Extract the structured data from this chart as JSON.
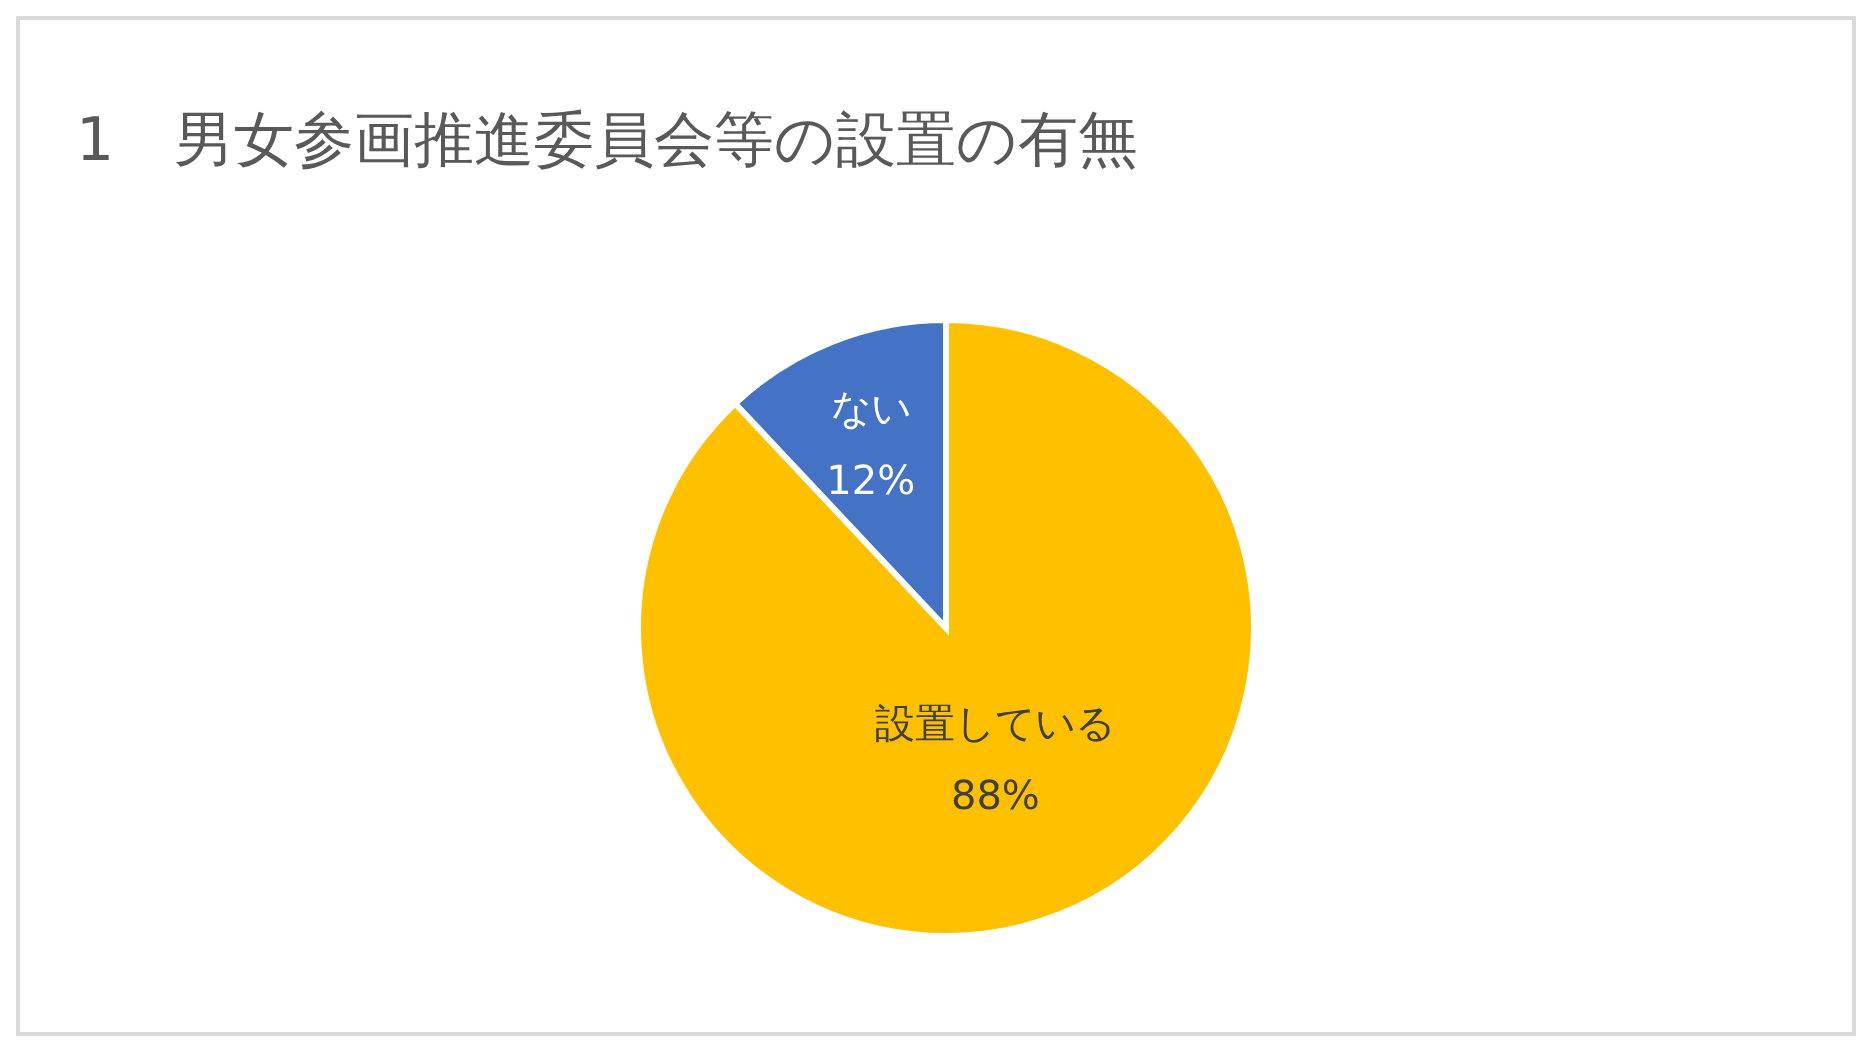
{
  "chart_data": {
    "type": "pie",
    "title": "1　男女参画推進委員会等の設置の有無",
    "categories": [
      "設置している",
      "ない"
    ],
    "values": [
      88,
      12
    ],
    "colors": [
      "#ffc000",
      "#4472c4"
    ],
    "value_labels": [
      "88%",
      "12%"
    ],
    "legend": false
  }
}
